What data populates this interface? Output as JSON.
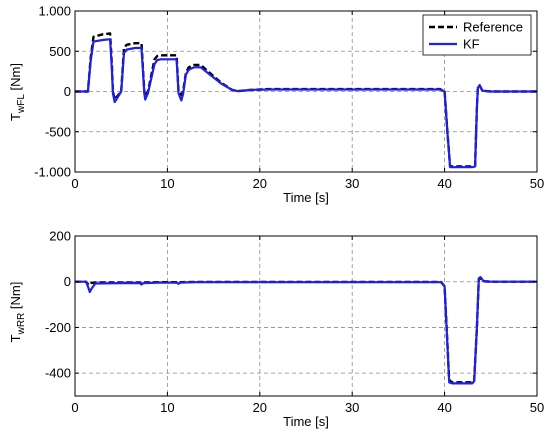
{
  "chart_data": [
    {
      "type": "line",
      "xlabel": "Time [s]",
      "ylabel": "T",
      "ylabel_sub": "wFL",
      "ylabel_unit": "[Nm]",
      "xlim": [
        0,
        50
      ],
      "ylim": [
        -1000,
        1000
      ],
      "xticks": [
        0,
        10,
        20,
        30,
        40,
        50
      ],
      "xtick_labels": [
        "0",
        "10",
        "20",
        "30",
        "40",
        "50"
      ],
      "yticks": [
        1000,
        500,
        0,
        -500,
        -1000
      ],
      "ytick_labels": [
        "1.000",
        "500",
        "0",
        "-500",
        "-1.000"
      ],
      "grid": true,
      "legend": "top-right",
      "series": [
        {
          "name": "Reference",
          "color": "#000000",
          "dash": true,
          "x": [
            0,
            1.4,
            1.7,
            2.0,
            3.0,
            3.8,
            4.0,
            4.1,
            4.3,
            5.0,
            5.3,
            5.6,
            6.5,
            7.2,
            7.5,
            7.6,
            7.9,
            8.6,
            8.9,
            9.3,
            10.0,
            11.0,
            11.2,
            11.5,
            11.7,
            12.0,
            12.3,
            12.9,
            13.6,
            14.6,
            15.8,
            17.0,
            17.6,
            18.1,
            19.0,
            21.0,
            25.0,
            30.0,
            35.0,
            39.5,
            40.0,
            40.3,
            40.6,
            41.0,
            43.0,
            43.3,
            43.5,
            43.6,
            43.8,
            44.1,
            45.0,
            50.0
          ],
          "y": [
            0,
            0,
            420,
            680,
            710,
            720,
            300,
            0,
            -100,
            0,
            540,
            580,
            600,
            600,
            0,
            -60,
            0,
            400,
            440,
            450,
            450,
            450,
            0,
            -40,
            0,
            230,
            300,
            330,
            330,
            230,
            110,
            20,
            5,
            10,
            20,
            30,
            30,
            30,
            30,
            30,
            0,
            -500,
            -930,
            -930,
            -930,
            -920,
            -200,
            60,
            70,
            10,
            0,
            0
          ]
        },
        {
          "name": "KF",
          "color": "#1f1fe6",
          "dash": false,
          "x": [
            0,
            1.4,
            1.7,
            2.0,
            3.0,
            3.8,
            4.0,
            4.1,
            4.3,
            5.0,
            5.3,
            5.6,
            6.5,
            7.2,
            7.5,
            7.6,
            7.9,
            8.6,
            8.9,
            9.3,
            10.0,
            11.0,
            11.2,
            11.5,
            11.7,
            12.0,
            12.3,
            12.9,
            13.6,
            14.6,
            15.8,
            17.0,
            17.6,
            18.1,
            19.0,
            21.0,
            25.0,
            30.0,
            35.0,
            39.5,
            40.0,
            40.3,
            40.6,
            41.0,
            43.0,
            43.3,
            43.5,
            43.6,
            43.8,
            44.1,
            45.0,
            50.0
          ],
          "y": [
            0,
            0,
            380,
            620,
            640,
            650,
            250,
            -20,
            -130,
            0,
            480,
            520,
            540,
            540,
            -20,
            -100,
            -20,
            340,
            390,
            400,
            400,
            400,
            -20,
            -110,
            -30,
            210,
            270,
            300,
            300,
            210,
            100,
            20,
            5,
            10,
            20,
            25,
            25,
            25,
            25,
            25,
            0,
            -500,
            -940,
            -940,
            -940,
            -930,
            -200,
            50,
            80,
            10,
            0,
            0
          ]
        }
      ]
    },
    {
      "type": "line",
      "xlabel": "Time [s]",
      "ylabel": "T",
      "ylabel_sub": "wRR",
      "ylabel_unit": "[Nm]",
      "xlim": [
        0,
        50
      ],
      "ylim": [
        -500,
        200
      ],
      "xticks": [
        0,
        10,
        20,
        30,
        40,
        50
      ],
      "xtick_labels": [
        "0",
        "10",
        "20",
        "30",
        "40",
        "50"
      ],
      "yticks": [
        200,
        0,
        -200,
        -400
      ],
      "ytick_labels": [
        "200",
        "0",
        "-200",
        "-400"
      ],
      "grid": true,
      "series": [
        {
          "name": "Reference",
          "color": "#000000",
          "dash": true,
          "x": [
            0,
            1.2,
            1.4,
            1.6,
            1.8,
            2.2,
            5.0,
            7.0,
            7.2,
            7.4,
            9.0,
            11.0,
            11.2,
            11.4,
            13.0,
            20.0,
            30.0,
            39.6,
            40.0,
            40.5,
            40.8,
            43.0,
            43.2,
            43.5,
            43.7,
            43.9,
            44.2,
            45.0,
            50.0
          ],
          "y": [
            0,
            0,
            -10,
            -15,
            -5,
            -3,
            -3,
            -3,
            -8,
            -3,
            -2,
            -2,
            -6,
            -2,
            -1,
            -1,
            -1,
            -1,
            -20,
            -430,
            -440,
            -440,
            -430,
            -200,
            10,
            15,
            2,
            0,
            0
          ]
        },
        {
          "name": "KF",
          "color": "#1f1fe6",
          "dash": false,
          "x": [
            0,
            1.2,
            1.4,
            1.6,
            1.8,
            2.2,
            5.0,
            7.0,
            7.2,
            7.4,
            9.0,
            11.0,
            11.2,
            11.4,
            13.0,
            20.0,
            30.0,
            39.6,
            40.0,
            40.5,
            40.8,
            43.0,
            43.2,
            43.5,
            43.7,
            43.9,
            44.2,
            45.0,
            50.0
          ],
          "y": [
            0,
            0,
            -20,
            -45,
            -30,
            -8,
            -6,
            -6,
            -12,
            -6,
            -4,
            -4,
            -9,
            -4,
            -2,
            -2,
            -2,
            -2,
            -20,
            -440,
            -445,
            -445,
            -435,
            -200,
            15,
            20,
            3,
            0,
            0
          ]
        }
      ]
    }
  ]
}
